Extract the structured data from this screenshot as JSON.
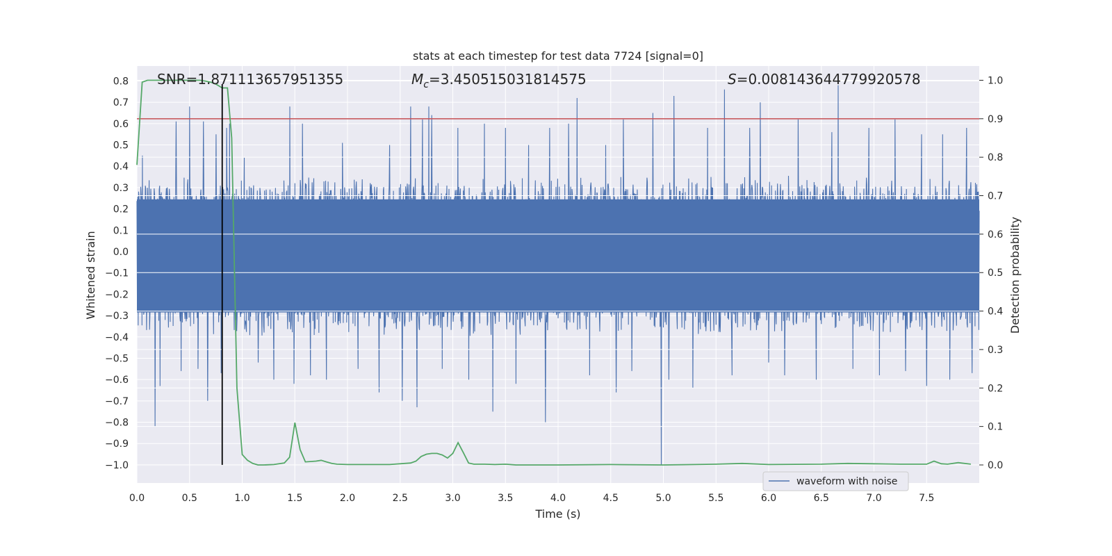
{
  "chart_data": {
    "type": "line",
    "title": "stats at each timestep for test data 7724 [signal=0]",
    "xlabel": "Time (s)",
    "ylabel_left": "Whitened strain",
    "ylabel_right": "Detection probability",
    "xlim": [
      0.0,
      8.0
    ],
    "ylim_left": [
      -1.085,
      0.87
    ],
    "ylim_right": [
      -0.047,
      1.037
    ],
    "x_ticks": [
      0.0,
      0.5,
      1.0,
      1.5,
      2.0,
      2.5,
      3.0,
      3.5,
      4.0,
      4.5,
      5.0,
      5.5,
      6.0,
      6.5,
      7.0,
      7.5
    ],
    "x_tick_labels": [
      "0.0",
      "0.5",
      "1.0",
      "1.5",
      "2.0",
      "2.5",
      "3.0",
      "3.5",
      "4.0",
      "4.5",
      "5.0",
      "5.5",
      "6.0",
      "6.5",
      "7.0",
      "7.5"
    ],
    "y_left_ticks": [
      0.8,
      0.7,
      0.6,
      0.5,
      0.4,
      0.3,
      0.2,
      0.1,
      0.0,
      -0.1,
      -0.2,
      -0.3,
      -0.4,
      -0.5,
      -0.6,
      -0.7,
      -0.8,
      -0.9,
      -1.0
    ],
    "y_left_tick_labels": [
      "0.8",
      "0.7",
      "0.6",
      "0.5",
      "0.4",
      "0.3",
      "0.2",
      "0.1",
      "0.0",
      "−0.1",
      "−0.2",
      "−0.3",
      "−0.4",
      "−0.5",
      "−0.6",
      "−0.7",
      "−0.8",
      "−0.9",
      "−1.0"
    ],
    "y_right_ticks": [
      1.0,
      0.9,
      0.8,
      0.7,
      0.6,
      0.5,
      0.4,
      0.3,
      0.2,
      0.1,
      0.0
    ],
    "y_right_tick_labels": [
      "1.0",
      "0.9",
      "0.8",
      "0.7",
      "0.6",
      "0.5",
      "0.4",
      "0.3",
      "0.2",
      "0.1",
      "0.0"
    ],
    "annotations": {
      "snr": "SNR=1.871113657951355",
      "mc_symbol": "M",
      "mc_subscript": "c",
      "mc_value": "=3.450515031814575",
      "s_symbol": "S",
      "s_value": "=0.008143644779920578"
    },
    "legend": {
      "label": "waveform with noise",
      "location": "lower-right"
    },
    "threshold_probability": 0.9,
    "marker_time": 0.81,
    "waveform": {
      "name": "waveform with noise",
      "sampling_step": 0.004,
      "envelope_upper": 0.3,
      "envelope_lower": -0.34,
      "spikes": [
        [
          0.05,
          0.45
        ],
        [
          0.17,
          -0.82
        ],
        [
          0.22,
          -0.63
        ],
        [
          0.37,
          0.61
        ],
        [
          0.42,
          -0.56
        ],
        [
          0.5,
          0.68
        ],
        [
          0.58,
          -0.55
        ],
        [
          0.63,
          0.61
        ],
        [
          0.67,
          -0.7
        ],
        [
          0.75,
          0.55
        ],
        [
          0.8,
          -0.57
        ],
        [
          0.85,
          0.58
        ],
        [
          0.88,
          0.6
        ],
        [
          1.02,
          0.44
        ],
        [
          1.15,
          -0.52
        ],
        [
          1.3,
          -0.6
        ],
        [
          1.45,
          0.68
        ],
        [
          1.49,
          -0.62
        ],
        [
          1.57,
          0.6
        ],
        [
          1.65,
          -0.58
        ],
        [
          1.8,
          -0.6
        ],
        [
          1.95,
          0.51
        ],
        [
          2.1,
          -0.55
        ],
        [
          2.3,
          -0.66
        ],
        [
          2.4,
          0.5
        ],
        [
          2.52,
          -0.7
        ],
        [
          2.6,
          0.68
        ],
        [
          2.66,
          -0.73
        ],
        [
          2.71,
          0.62
        ],
        [
          2.77,
          0.68
        ],
        [
          2.8,
          0.64
        ],
        [
          2.9,
          -0.55
        ],
        [
          3.05,
          0.58
        ],
        [
          3.15,
          -0.6
        ],
        [
          3.3,
          0.6
        ],
        [
          3.38,
          -0.75
        ],
        [
          3.5,
          0.58
        ],
        [
          3.6,
          -0.62
        ],
        [
          3.72,
          0.5
        ],
        [
          3.88,
          -0.8
        ],
        [
          3.92,
          0.58
        ],
        [
          4.1,
          0.6
        ],
        [
          4.18,
          0.72
        ],
        [
          4.3,
          -0.58
        ],
        [
          4.45,
          0.5
        ],
        [
          4.55,
          -0.66
        ],
        [
          4.62,
          0.62
        ],
        [
          4.7,
          -0.56
        ],
        [
          4.9,
          0.65
        ],
        [
          4.98,
          -1.0
        ],
        [
          5.05,
          -0.6
        ],
        [
          5.1,
          0.73
        ],
        [
          5.28,
          -0.64
        ],
        [
          5.42,
          0.58
        ],
        [
          5.58,
          0.76
        ],
        [
          5.65,
          -0.58
        ],
        [
          5.82,
          0.58
        ],
        [
          5.92,
          0.7
        ],
        [
          6.0,
          -0.52
        ],
        [
          6.15,
          -0.58
        ],
        [
          6.28,
          0.62
        ],
        [
          6.45,
          -0.6
        ],
        [
          6.6,
          0.56
        ],
        [
          6.66,
          0.78
        ],
        [
          6.8,
          -0.55
        ],
        [
          6.95,
          0.58
        ],
        [
          7.05,
          -0.58
        ],
        [
          7.2,
          0.62
        ],
        [
          7.3,
          -0.56
        ],
        [
          7.45,
          0.55
        ],
        [
          7.5,
          -0.63
        ],
        [
          7.65,
          0.55
        ],
        [
          7.72,
          -0.6
        ],
        [
          7.88,
          0.58
        ],
        [
          7.93,
          -0.57
        ]
      ]
    },
    "detection_probability": {
      "x": [
        0.0,
        0.05,
        0.1,
        0.2,
        0.3,
        0.4,
        0.5,
        0.6,
        0.65,
        0.7,
        0.75,
        0.81,
        0.86,
        0.9,
        0.95,
        1.0,
        1.05,
        1.1,
        1.15,
        1.2,
        1.3,
        1.4,
        1.45,
        1.5,
        1.55,
        1.6,
        1.7,
        1.75,
        1.8,
        1.85,
        1.9,
        2.0,
        2.2,
        2.4,
        2.6,
        2.65,
        2.7,
        2.75,
        2.8,
        2.85,
        2.9,
        2.95,
        3.0,
        3.05,
        3.1,
        3.15,
        3.2,
        3.3,
        3.4,
        3.5,
        3.6,
        4.0,
        4.5,
        5.0,
        5.5,
        5.75,
        6.0,
        6.5,
        6.75,
        7.0,
        7.25,
        7.5,
        7.57,
        7.64,
        7.7,
        7.8,
        7.92
      ],
      "y": [
        0.78,
        0.995,
        1.0,
        1.0,
        1.0,
        1.0,
        1.0,
        1.0,
        0.998,
        0.995,
        0.99,
        0.98,
        0.98,
        0.85,
        0.2,
        0.027,
        0.012,
        0.004,
        0.0,
        0.0,
        0.001,
        0.005,
        0.02,
        0.11,
        0.04,
        0.008,
        0.01,
        0.012,
        0.008,
        0.004,
        0.002,
        0.001,
        0.001,
        0.001,
        0.005,
        0.01,
        0.022,
        0.028,
        0.03,
        0.03,
        0.026,
        0.018,
        0.03,
        0.058,
        0.032,
        0.005,
        0.002,
        0.002,
        0.001,
        0.002,
        0.0,
        0.0,
        0.001,
        0.0,
        0.002,
        0.004,
        0.001,
        0.002,
        0.004,
        0.003,
        0.002,
        0.002,
        0.01,
        0.003,
        0.002,
        0.006,
        0.002
      ],
      "color": "#55a868"
    },
    "colors": {
      "background": "#eaeaf2",
      "grid": "#ffffff",
      "waveform": "#4c72b0",
      "probability": "#55a868",
      "threshold": "#c44e52",
      "marker": "#000000",
      "text": "#262626"
    }
  }
}
